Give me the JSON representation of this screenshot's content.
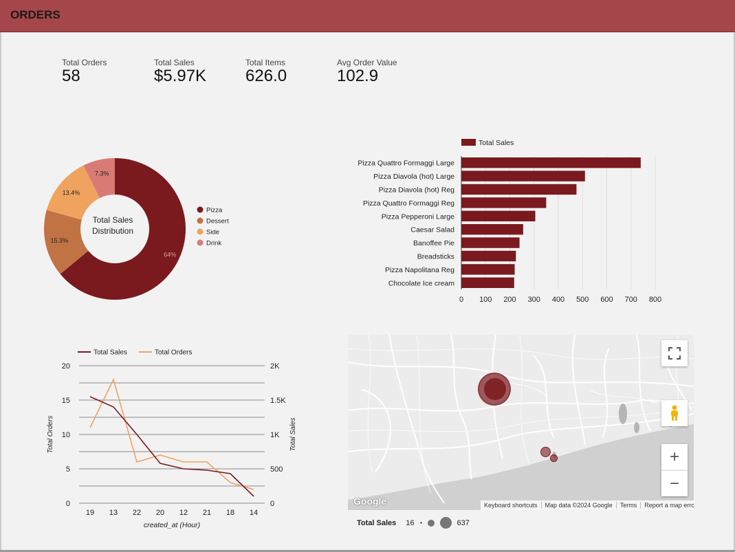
{
  "header": {
    "title": "ORDERS"
  },
  "kpis": [
    {
      "label": "Total Orders",
      "value": "58"
    },
    {
      "label": "Total Sales",
      "value": "$5.97K"
    },
    {
      "label": "Total Items",
      "value": "626.0"
    },
    {
      "label": "Avg Order Value",
      "value": "102.9"
    }
  ],
  "colors": {
    "header": "#a5474a",
    "pizza": "#7a1a1e",
    "dessert": "#c17344",
    "side": "#f0a35f",
    "drink": "#d97b74",
    "total_orders_line": "#f0a35f"
  },
  "chart_data": [
    {
      "type": "pie",
      "center_label": "Total Sales Distribution",
      "slices": [
        {
          "name": "Pizza",
          "value": 64,
          "label": "64%"
        },
        {
          "name": "Dessert",
          "value": 15.3,
          "label": "15.3%"
        },
        {
          "name": "Side",
          "value": 13.4,
          "label": "13.4%"
        },
        {
          "name": "Drink",
          "value": 7.3,
          "label": "7.3%"
        }
      ],
      "legend_placement": "right"
    },
    {
      "type": "bar",
      "orientation": "horizontal",
      "legend": "Total Sales",
      "categories": [
        "Pizza Quattro Formaggi Large",
        "Pizza Diavola (hot) Large",
        "Pizza Diavola (hot) Reg",
        "Pizza Quattro Formaggi Reg",
        "Pizza Pepperoni Large",
        "Caesar Salad",
        "Banoffee Pie",
        "Breadsticks",
        "Pizza Napolitana Reg",
        "Chocolate Ice cream"
      ],
      "values": [
        740,
        510,
        475,
        350,
        305,
        255,
        240,
        225,
        220,
        218
      ],
      "xticks": [
        "0",
        "100",
        "200",
        "300",
        "400",
        "500",
        "600",
        "700",
        "800"
      ],
      "xlim": [
        0,
        800
      ],
      "legend_placement": "top"
    },
    {
      "type": "line",
      "categories": [
        "19",
        "13",
        "22",
        "20",
        "12",
        "21",
        "18",
        "14"
      ],
      "xlabel": "created_at (Hour)",
      "ylabel_left": "Total Orders",
      "ylabel_right": "Total Sales",
      "left_ticks": [
        "0",
        "5",
        "10",
        "15",
        "20"
      ],
      "right_ticks": [
        "0",
        "500",
        "1K",
        "1.5K",
        "2K"
      ],
      "ylim_left": [
        0,
        20
      ],
      "ylim_right": [
        0,
        2000
      ],
      "series": [
        {
          "name": "Total Sales",
          "axis": "right",
          "values": [
            1550,
            1400,
            1000,
            580,
            500,
            480,
            430,
            100
          ]
        },
        {
          "name": "Total Orders",
          "axis": "left",
          "values": [
            11,
            18,
            6,
            7,
            6,
            6,
            3,
            2
          ]
        }
      ],
      "legend_placement": "top"
    }
  ],
  "map": {
    "controls": {
      "fullscreen_icon": "fullscreen-icon",
      "pegman_icon": "pegman-icon",
      "zoom_in": "+",
      "zoom_out": "−"
    },
    "logo": "Google",
    "footer": [
      "Keyboard shortcuts",
      "Map data ©2024 Google",
      "Terms",
      "Report a map error"
    ],
    "legend": {
      "title": "Total Sales",
      "min": "16",
      "max": "637"
    }
  }
}
